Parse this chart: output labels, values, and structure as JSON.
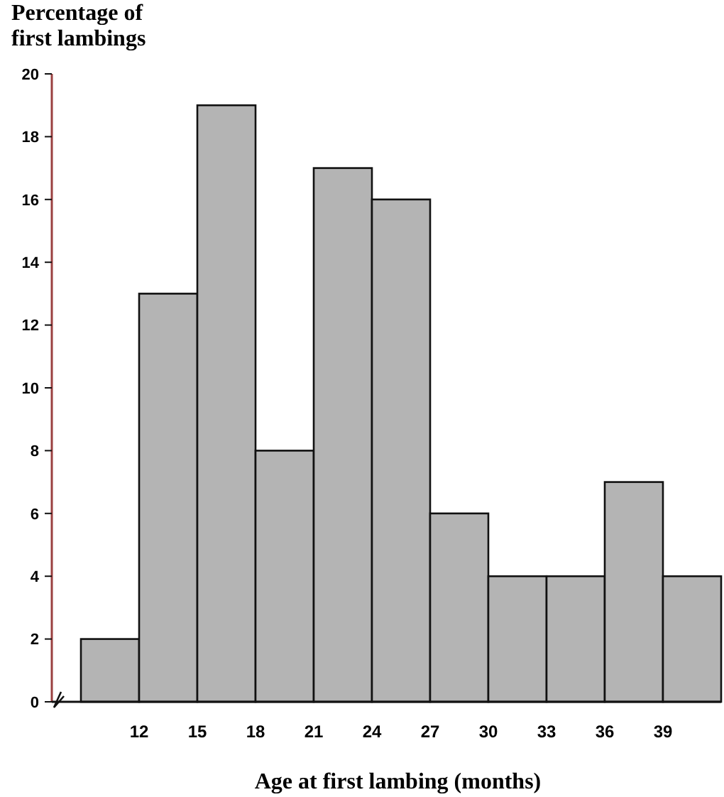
{
  "chart_data": {
    "type": "histogram",
    "ylabel": "Percentage of first lambings",
    "xlabel": "Age at first lambing (months)",
    "bins": [
      9,
      12,
      15,
      18,
      21,
      24,
      27,
      30,
      33,
      36,
      39,
      42
    ],
    "values": [
      2,
      13,
      19,
      8,
      17,
      16,
      6,
      4,
      4,
      7,
      4
    ],
    "color": "#b4b4b4",
    "xlim": [
      7.5,
      42
    ],
    "xticks": [
      12,
      15,
      18,
      21,
      24,
      27,
      30,
      33,
      36,
      39
    ],
    "ylim": [
      0,
      20
    ],
    "yticks": [
      0,
      2,
      4,
      6,
      8,
      10,
      12,
      14,
      16,
      18,
      20
    ],
    "grid": false
  }
}
